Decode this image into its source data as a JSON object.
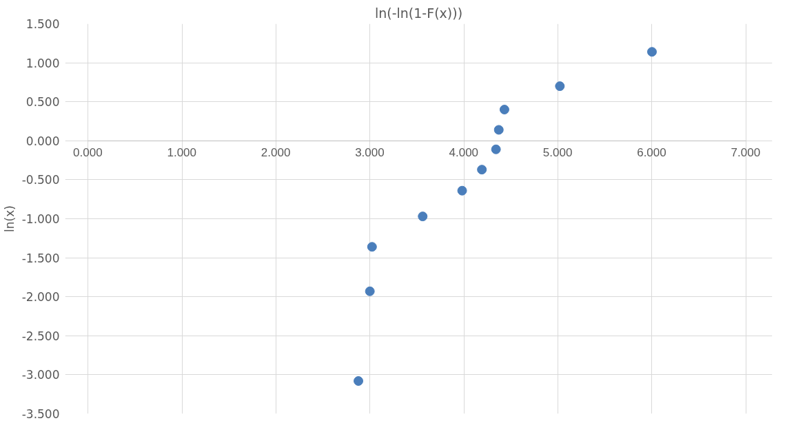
{
  "chart_data": {
    "type": "scatter",
    "title": "ln(-ln(1-F(x)))",
    "ylabel": "ln(x)",
    "x": [
      2.876,
      2.998,
      3.021,
      3.56,
      3.98,
      4.19,
      4.34,
      4.37,
      4.43,
      5.02,
      6.0
    ],
    "series": [
      {
        "color": "#4a7ebb",
        "values": [
          -3.08,
          -1.93,
          -1.36,
          -0.97,
          -0.64,
          -0.37,
          -0.11,
          0.14,
          0.4,
          0.7,
          1.14
        ]
      }
    ],
    "xlim": [
      0,
      7
    ],
    "xticks": [
      {
        "value": 0,
        "label": "0.000"
      },
      {
        "value": 1,
        "label": "1.000"
      },
      {
        "value": 2,
        "label": "2.000"
      },
      {
        "value": 3,
        "label": "3.000"
      },
      {
        "value": 4,
        "label": "4.000"
      },
      {
        "value": 5,
        "label": "5.000"
      },
      {
        "value": 6,
        "label": "6.000"
      },
      {
        "value": 7,
        "label": "7.000"
      }
    ],
    "ylim": [
      -3.5,
      1.5
    ],
    "yticks": [
      {
        "value": -3.5,
        "label": "-3.500"
      },
      {
        "value": -3,
        "label": "-3.000"
      },
      {
        "value": -2.5,
        "label": "-2.500"
      },
      {
        "value": -2,
        "label": "-2.000"
      },
      {
        "value": -1.5,
        "label": "-1.500"
      },
      {
        "value": -1,
        "label": "-1.000"
      },
      {
        "value": -0.5,
        "label": "-0.500"
      },
      {
        "value": 0,
        "label": "0.000"
      },
      {
        "value": 0.5,
        "label": "0.500"
      },
      {
        "value": 1,
        "label": "1.000"
      },
      {
        "value": 1.5,
        "label": "1.500"
      }
    ],
    "grid": true,
    "marker": "circle"
  }
}
